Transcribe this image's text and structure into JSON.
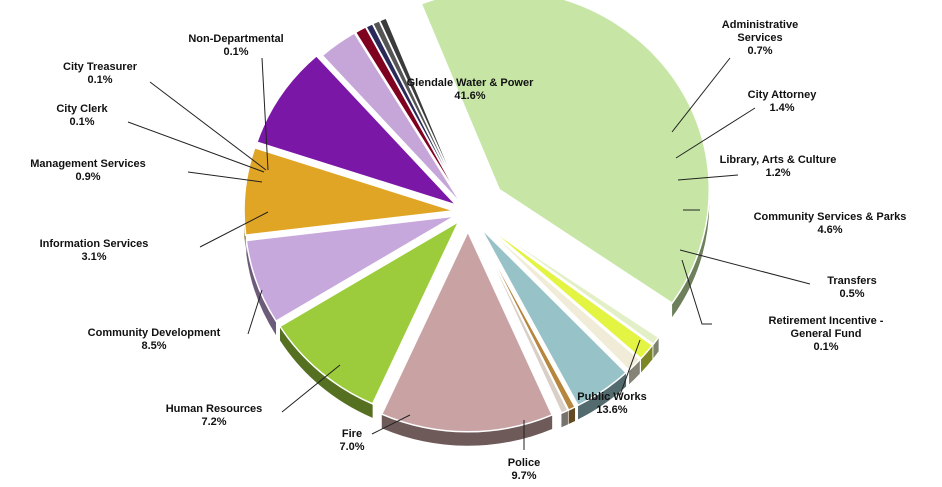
{
  "chart_data": {
    "type": "pie",
    "exploded": true,
    "three_d": true,
    "slices": [
      {
        "label": "Glendale Water & Power",
        "value_label": "41.6%",
        "value": 41.6,
        "color": "#c7e6a6"
      },
      {
        "label": "Administrative Services",
        "value_label": "0.7%",
        "value": 0.7,
        "color": "#e3f0c7"
      },
      {
        "label": "City Attorney",
        "value_label": "1.4%",
        "value": 1.4,
        "color": "#e4f442"
      },
      {
        "label": "Library, Arts & Culture",
        "value_label": "1.2%",
        "value": 1.2,
        "color": "#f1ecd7"
      },
      {
        "label": "Community Services & Parks",
        "value_label": "4.6%",
        "value": 4.6,
        "color": "#96c2c8"
      },
      {
        "label": "Transfers",
        "value_label": "0.5%",
        "value": 0.5,
        "color": "#b5863c"
      },
      {
        "label": "Retirement Incentive - General Fund",
        "value_label": "0.1%",
        "value": 0.1,
        "color": "#d9cfc7"
      },
      {
        "label": "Public Works",
        "value_label": "13.6%",
        "value": 13.6,
        "color": "#c9a3a4"
      },
      {
        "label": "Police",
        "value_label": "9.7%",
        "value": 9.7,
        "color": "#9ccc3c"
      },
      {
        "label": "Fire",
        "value_label": "7.0%",
        "value": 7.0,
        "color": "#c7a8dc"
      },
      {
        "label": "Human Resources",
        "value_label": "7.2%",
        "value": 7.2,
        "color": "#e0a524"
      },
      {
        "label": "Community Development",
        "value_label": "8.5%",
        "value": 8.5,
        "color": "#7a17a6"
      },
      {
        "label": "Information Services",
        "value_label": "3.1%",
        "value": 3.1,
        "color": "#c6a6d8"
      },
      {
        "label": "Management Services",
        "value_label": "0.9%",
        "value": 0.9,
        "color": "#800020"
      },
      {
        "label": "City Clerk",
        "value_label": "0.1%",
        "value": 0.1,
        "color": "#2a2a5a"
      },
      {
        "label": "City Treasurer",
        "value_label": "0.1%",
        "value": 0.1,
        "color": "#555555"
      },
      {
        "label": "Non-Departmental",
        "value_label": "0.1%",
        "value": 0.1,
        "color": "#3b3b3b"
      }
    ]
  }
}
